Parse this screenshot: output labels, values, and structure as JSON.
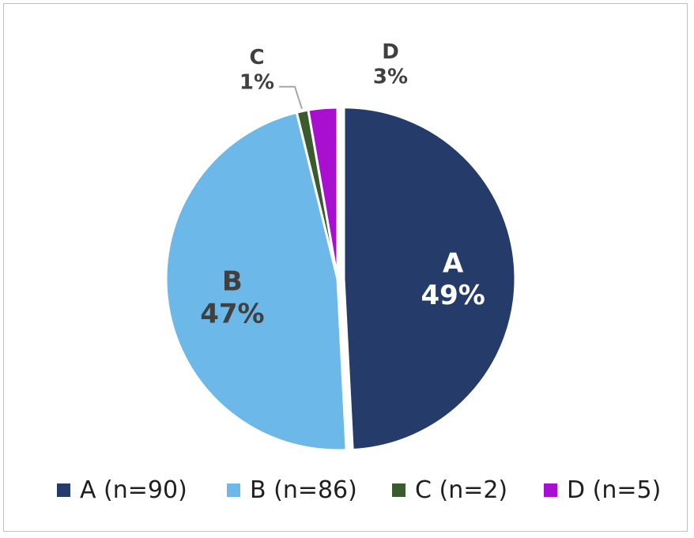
{
  "chart_data": {
    "type": "pie",
    "title": "",
    "legend_position": "bottom",
    "start_angle_deg": 0,
    "direction": "clockwise",
    "slices": [
      {
        "label": "A",
        "percent_label": "49%",
        "value": 90,
        "legend": "A (n=90)",
        "color": "#253b6a",
        "label_color": "#ffffff"
      },
      {
        "label": "B",
        "percent_label": "47%",
        "value": 86,
        "legend": "B (n=86)",
        "color": "#6cb8e8",
        "label_color": "#404040"
      },
      {
        "label": "C",
        "percent_label": "1%",
        "value": 2,
        "legend": "C (n=2)",
        "color": "#3b5a2e",
        "label_color": "#404040"
      },
      {
        "label": "D",
        "percent_label": "3%",
        "value": 5,
        "legend": "D (n=5)",
        "color": "#a80fcf",
        "label_color": "#404040"
      }
    ]
  }
}
